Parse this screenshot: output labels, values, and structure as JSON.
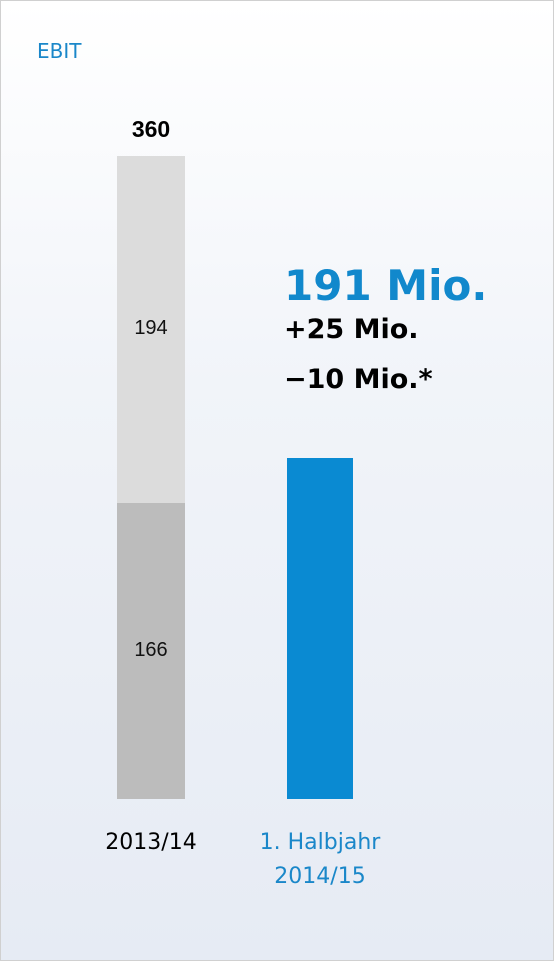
{
  "chart_data": {
    "type": "stacked_bar",
    "title": "EBIT",
    "categories": [
      "2013/14",
      "1. Halbjahr 2014/15"
    ],
    "series": [
      {
        "color": "#bcbcbc",
        "values": [
          166,
          null
        ]
      },
      {
        "color": "#dcdcdc",
        "values": [
          194,
          null
        ]
      },
      {
        "color": "#0a8ad2",
        "values": [
          null,
          191
        ]
      }
    ],
    "total_label": "360",
    "annotations": [
      "191 Mio.",
      "+25 Mio.",
      "−10 Mio.*"
    ]
  }
}
